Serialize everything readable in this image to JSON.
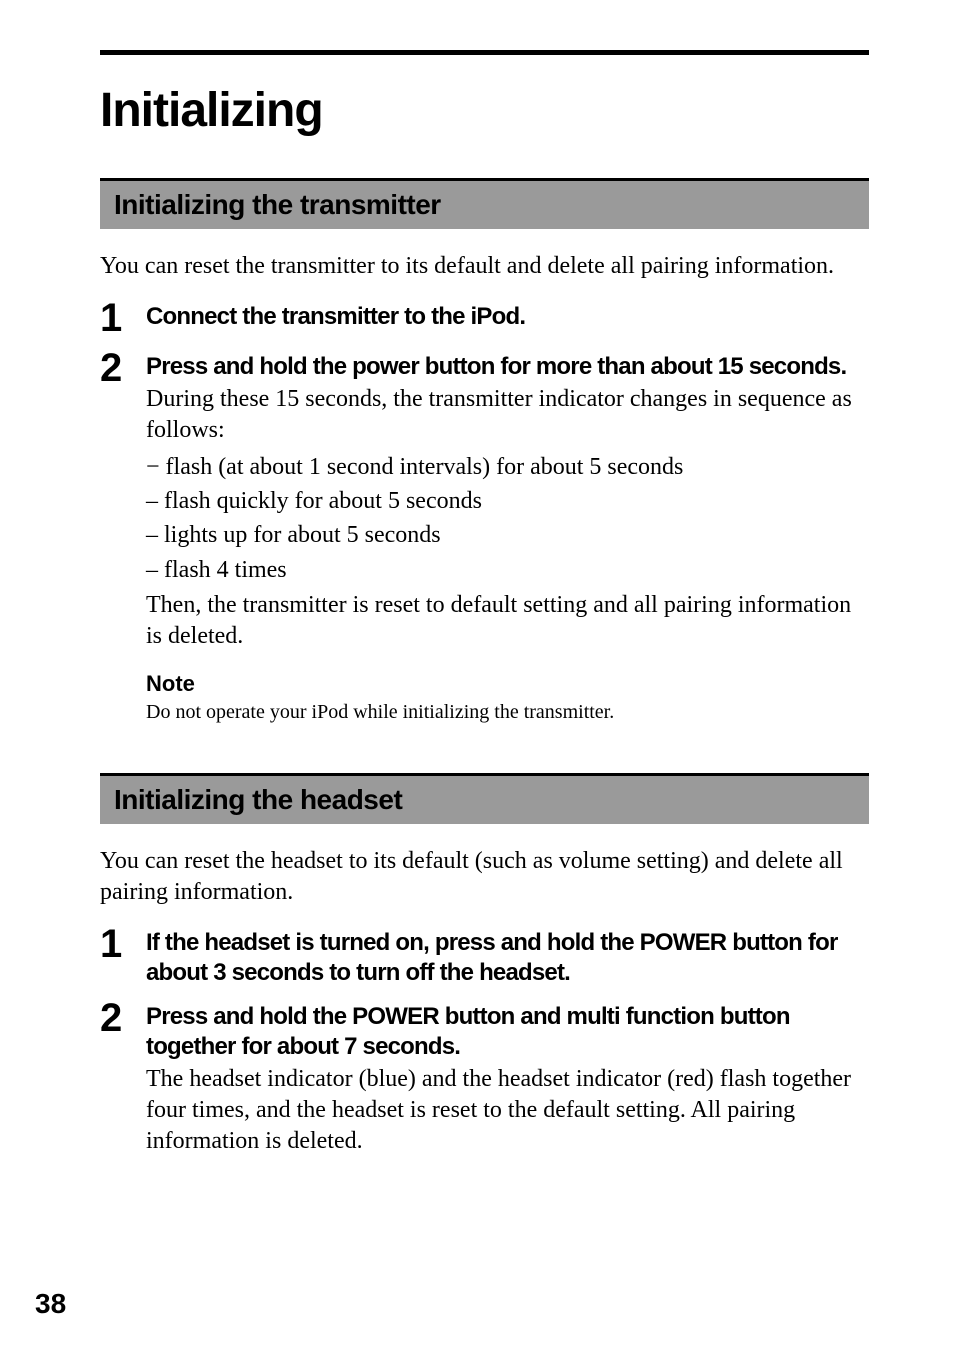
{
  "title": "Initializing",
  "section1": {
    "header": "Initializing the transmitter",
    "intro": "You can reset the transmitter to its default and delete all pairing information.",
    "steps": [
      {
        "num": "1",
        "title": "Connect the transmitter to the iPod."
      },
      {
        "num": "2",
        "title": "Press and hold the power button for more than about 15 seconds.",
        "body": "During these 15 seconds, the transmitter indicator changes in sequence as follows:",
        "list": [
          "− flash (at about 1 second intervals) for about 5 seconds",
          "– flash quickly for about 5 seconds",
          "– lights up for about 5 seconds",
          "– flash 4 times"
        ],
        "followup": "Then, the transmitter is reset to default setting and all pairing information is deleted."
      }
    ],
    "note": {
      "label": "Note",
      "text": "Do not operate your iPod while initializing the transmitter."
    }
  },
  "section2": {
    "header": "Initializing the headset",
    "intro": "You can reset the headset to its default (such as volume setting) and delete all pairing information.",
    "steps": [
      {
        "num": "1",
        "title": "If the headset is turned on, press and hold the POWER button for about 3 seconds to turn off the headset."
      },
      {
        "num": "2",
        "title": "Press and hold the POWER button and multi function button together for about 7 seconds.",
        "body": "The headset indicator (blue) and the headset indicator (red) flash together four times, and the headset is reset to the default setting. All pairing information is deleted."
      }
    ]
  },
  "pageNumber": "38"
}
